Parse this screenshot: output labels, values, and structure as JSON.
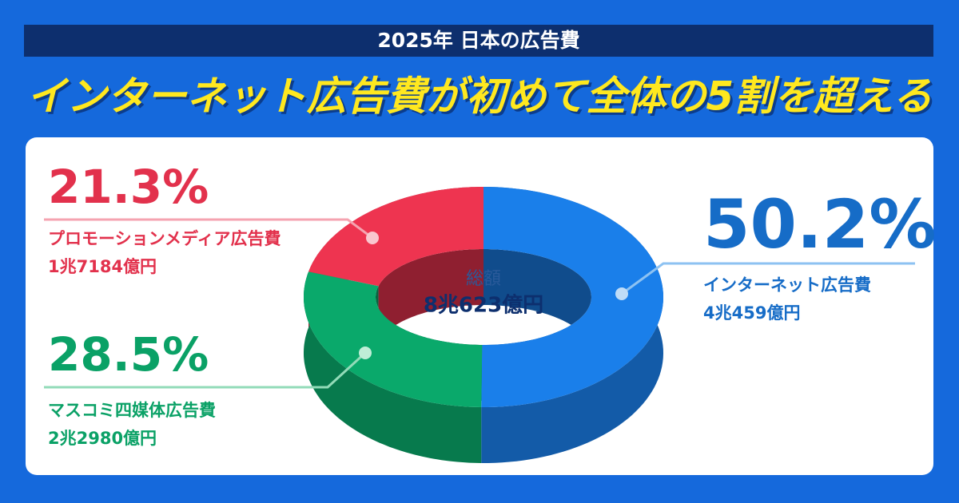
{
  "chart_data": {
    "type": "pie",
    "donut": true,
    "title": "2025年 日本の広告費",
    "subtitle": "インターネット広告費が初めて全体の5割を超える",
    "categories": [
      "インターネット広告費",
      "マスコミ四媒体広告費",
      "プロモーションメディア広告費"
    ],
    "values": [
      50.2,
      28.5,
      21.3
    ],
    "value_labels": [
      "50.2%",
      "28.5%",
      "21.3%"
    ],
    "amounts": [
      "4兆459億円",
      "2兆2980億円",
      "1兆7184億円"
    ],
    "colors": [
      "#1a7fea",
      "#0aa96b",
      "#ee3450"
    ],
    "center_label": "総額",
    "center_value": "8兆623億円"
  }
}
